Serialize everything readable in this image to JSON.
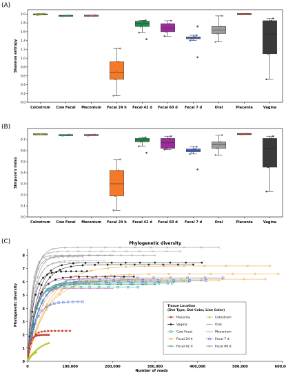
{
  "chart_data": [
    {
      "panel": "(A)",
      "type": "box",
      "title": "",
      "ylabel": "Shannon entropy",
      "xlabel": "",
      "ylim": [
        0,
        2.1
      ],
      "yticks": [
        "0.0",
        "0.2",
        "0.4",
        "0.6",
        "0.8",
        "1.0",
        "1.2",
        "1.4",
        "1.6",
        "1.8",
        "2.0"
      ],
      "grid": false,
      "categories": [
        "Colostrum",
        "Cow Fecal",
        "Meconium",
        "Fecal 24 h",
        "Fecal 42 d",
        "Fecal 60 d",
        "Fecal 7 d",
        "Oral",
        "Placenta",
        "Vagina"
      ],
      "boxes": [
        {
          "color": "#b5c732",
          "min": 1.98,
          "q1": 1.985,
          "median": 1.99,
          "q3": 2.0,
          "max": 2.01,
          "outliers": []
        },
        {
          "color": "#2aa6a0",
          "min": 1.95,
          "q1": 1.955,
          "median": 1.96,
          "q3": 1.965,
          "max": 1.97,
          "outliers": []
        },
        {
          "color": "#d46fb0",
          "min": 1.95,
          "q1": 1.955,
          "median": 1.96,
          "q3": 1.97,
          "max": 1.975,
          "outliers": []
        },
        {
          "color": "#f47a2a",
          "min": 0.15,
          "q1": 0.52,
          "median": 0.68,
          "q3": 0.92,
          "max": 1.22,
          "outliers": []
        },
        {
          "color": "#1e8a47",
          "min": 1.58,
          "q1": 1.72,
          "median": 1.78,
          "q3": 1.84,
          "max": 1.86,
          "outliers": [
            1.43
          ]
        },
        {
          "color": "#9b2c99",
          "min": 1.5,
          "q1": 1.6,
          "median": 1.68,
          "q3": 1.78,
          "max": 1.85,
          "outliers": []
        },
        {
          "color": "#4a6ed4",
          "min": 1.4,
          "q1": 1.44,
          "median": 1.46,
          "q3": 1.48,
          "max": 1.52,
          "outliers": [
            1.72,
            1.02
          ]
        },
        {
          "color": "#9e9e9e",
          "min": 1.37,
          "q1": 1.56,
          "median": 1.64,
          "q3": 1.72,
          "max": 1.96,
          "outliers": []
        },
        {
          "color": "#c23a2a",
          "min": 1.995,
          "q1": 2.0,
          "median": 2.0,
          "q3": 2.0,
          "max": 2.005,
          "outliers": []
        },
        {
          "color": "#3a3a3a",
          "min": 0.52,
          "q1": 1.1,
          "median": 1.55,
          "q3": 1.85,
          "max": 1.9,
          "outliers": []
        }
      ]
    },
    {
      "panel": "(B)",
      "type": "box",
      "title": "",
      "ylabel": "Simpson's index",
      "xlabel": "",
      "ylim": [
        0,
        0.8
      ],
      "yticks": [
        "0.0",
        "0.1",
        "0.2",
        "0.3",
        "0.4",
        "0.5",
        "0.6",
        "0.7"
      ],
      "grid": false,
      "categories": [
        "Colostrum",
        "Cow Fecal",
        "Meconium",
        "Fecal 24 h",
        "Fecal 42 d",
        "Fecal 60 d",
        "Fecal 7 d",
        "Oral",
        "Placenta",
        "Vagina"
      ],
      "boxes": [
        {
          "color": "#b5c732",
          "min": 0.745,
          "q1": 0.746,
          "median": 0.748,
          "q3": 0.75,
          "max": 0.752,
          "outliers": []
        },
        {
          "color": "#2aa6a0",
          "min": 0.735,
          "q1": 0.738,
          "median": 0.74,
          "q3": 0.742,
          "max": 0.745,
          "outliers": []
        },
        {
          "color": "#d46fb0",
          "min": 0.735,
          "q1": 0.738,
          "median": 0.74,
          "q3": 0.743,
          "max": 0.746,
          "outliers": []
        },
        {
          "color": "#f47a2a",
          "min": 0.06,
          "q1": 0.19,
          "median": 0.3,
          "q3": 0.42,
          "max": 0.52,
          "outliers": []
        },
        {
          "color": "#1e8a47",
          "min": 0.64,
          "q1": 0.68,
          "median": 0.695,
          "q3": 0.71,
          "max": 0.72,
          "outliers": [
            0.58
          ]
        },
        {
          "color": "#9b2c99",
          "min": 0.61,
          "q1": 0.62,
          "median": 0.67,
          "q3": 0.71,
          "max": 0.73,
          "outliers": []
        },
        {
          "color": "#4a6ed4",
          "min": 0.57,
          "q1": 0.59,
          "median": 0.605,
          "q3": 0.615,
          "max": 0.635,
          "outliers": [
            0.43
          ]
        },
        {
          "color": "#9e9e9e",
          "min": 0.56,
          "q1": 0.62,
          "median": 0.655,
          "q3": 0.68,
          "max": 0.74,
          "outliers": []
        },
        {
          "color": "#c23a2a",
          "min": 0.748,
          "q1": 0.75,
          "median": 0.75,
          "q3": 0.75,
          "max": 0.752,
          "outliers": []
        },
        {
          "color": "#3a3a3a",
          "min": 0.23,
          "q1": 0.45,
          "median": 0.62,
          "q3": 0.71,
          "max": 0.73,
          "outliers": []
        }
      ]
    },
    {
      "panel": "(C)",
      "type": "line",
      "title": "Phylogenetic diversity",
      "xlabel": "Number of reads",
      "ylabel": "Phylogenetic diversity",
      "xlim": [
        0,
        600000
      ],
      "ylim": [
        0,
        8.5
      ],
      "xticks": [
        "0",
        "100,000",
        "200,000",
        "300,000",
        "400,000",
        "500,000",
        "600,000"
      ],
      "yticks": [
        "0",
        "1",
        "2",
        "3",
        "4",
        "5",
        "6",
        "7",
        "8"
      ],
      "grid": false,
      "legend": {
        "title": "Tissue Location",
        "subtitle": "(Dot Type, Dot Color, Line Color)",
        "placement": "bottom-right",
        "entries": [
          {
            "name": "Placenta",
            "color": "#c23a2a",
            "marker": "circle"
          },
          {
            "name": "Colostrum",
            "color": "#b5c732",
            "marker": "circle"
          },
          {
            "name": "Vagina",
            "color": "#222222",
            "marker": "circle"
          },
          {
            "name": "Oral",
            "color": "#9e9e9e",
            "marker": "plus"
          },
          {
            "name": "Cow Fecal",
            "color": "#2aa6a0",
            "marker": "square"
          },
          {
            "name": "Meconium",
            "color": "#d46fb0",
            "marker": "minus"
          },
          {
            "name": "Fecal 24 h",
            "color": "#f0a02a",
            "marker": "star"
          },
          {
            "name": "Fecal 7 d",
            "color": "#4a6ed4",
            "marker": "square"
          },
          {
            "name": "Fecal 42 d",
            "color": "#1e8a47",
            "marker": "x"
          },
          {
            "name": "Fecal 60 d",
            "color": "#777777",
            "marker": "x"
          }
        ]
      },
      "series": [
        {
          "group": "Fecal 60 d",
          "color": "#8c8c8c",
          "marker": "x",
          "xmax": 450000,
          "asym": 8.6,
          "k": 14000
        },
        {
          "group": "Fecal 60 d",
          "color": "#8c8c8c",
          "marker": "x",
          "xmax": 360000,
          "asym": 8.3,
          "k": 12000
        },
        {
          "group": "Fecal 60 d",
          "color": "#8c8c8c",
          "marker": "x",
          "xmax": 300000,
          "asym": 8.0,
          "k": 15000
        },
        {
          "group": "Fecal 60 d",
          "color": "#8c8c8c",
          "marker": "x",
          "xmax": 200000,
          "asym": 8.0,
          "k": 10000
        },
        {
          "group": "Fecal 60 d",
          "color": "#8c8c8c",
          "marker": "x",
          "xmax": 130000,
          "asym": 7.9,
          "k": 12000
        },
        {
          "group": "Oral",
          "color": "#a9a9a9",
          "marker": "plus",
          "xmax": 180000,
          "asym": 7.6,
          "k": 16000
        },
        {
          "group": "Oral",
          "color": "#a9a9a9",
          "marker": "plus",
          "xmax": 120000,
          "asym": 7.5,
          "k": 15000
        },
        {
          "group": "Vagina",
          "color": "#222222",
          "marker": "circle",
          "xmax": 410000,
          "asym": 7.45,
          "k": 22000
        },
        {
          "group": "Vagina",
          "color": "#222222",
          "marker": "circle",
          "xmax": 390000,
          "asym": 7.3,
          "k": 26000
        },
        {
          "group": "Vagina",
          "color": "#222222",
          "marker": "circle",
          "xmax": 250000,
          "asym": 6.4,
          "k": 20000
        },
        {
          "group": "Vagina",
          "color": "#222222",
          "marker": "circle",
          "xmax": 140000,
          "asym": 6.8,
          "k": 14000
        },
        {
          "group": "Fecal 24 h",
          "color": "#f0a02a",
          "marker": "star",
          "xmax": 570000,
          "asym": 7.2,
          "k": 50000
        },
        {
          "group": "Fecal 24 h",
          "color": "#f0a02a",
          "marker": "star",
          "xmax": 590000,
          "asym": 6.6,
          "k": 48000
        },
        {
          "group": "Fecal 24 h",
          "color": "#f0a02a",
          "marker": "star",
          "xmax": 560000,
          "asym": 6.2,
          "k": 45000
        },
        {
          "group": "Fecal 24 h",
          "color": "#f0a02a",
          "marker": "star",
          "xmax": 450000,
          "asym": 6.1,
          "k": 30000
        },
        {
          "group": "Fecal 7 d",
          "color": "#4a6ed4",
          "marker": "square",
          "xmax": 460000,
          "asym": 6.3,
          "k": 28000
        },
        {
          "group": "Fecal 7 d",
          "color": "#4a6ed4",
          "marker": "square",
          "xmax": 420000,
          "asym": 6.1,
          "k": 26000
        },
        {
          "group": "Fecal 7 d",
          "color": "#4a6ed4",
          "marker": "square",
          "xmax": 330000,
          "asym": 5.9,
          "k": 24000
        },
        {
          "group": "Fecal 7 d",
          "color": "#4a6ed4",
          "marker": "square",
          "xmax": 130000,
          "asym": 4.5,
          "k": 18000
        },
        {
          "group": "Fecal 42 d",
          "color": "#1e8a47",
          "marker": "x",
          "xmax": 380000,
          "asym": 6.0,
          "k": 20000
        },
        {
          "group": "Fecal 42 d",
          "color": "#1e8a47",
          "marker": "x",
          "xmax": 300000,
          "asym": 5.8,
          "k": 18000
        },
        {
          "group": "Cow Fecal",
          "color": "#2aa6a0",
          "marker": "square",
          "xmax": 340000,
          "asym": 5.9,
          "k": 18000
        },
        {
          "group": "Cow Fecal",
          "color": "#2aa6a0",
          "marker": "square",
          "xmax": 260000,
          "asym": 5.6,
          "k": 16000
        },
        {
          "group": "Meconium",
          "color": "#d46fb0",
          "marker": "minus",
          "xmax": 300000,
          "asym": 6.2,
          "k": 16000
        },
        {
          "group": "Meconium",
          "color": "#d46fb0",
          "marker": "minus",
          "xmax": 200000,
          "asym": 5.5,
          "k": 14000
        },
        {
          "group": "Placenta",
          "color": "#c23a2a",
          "marker": "circle",
          "xmax": 100000,
          "asym": 2.3,
          "k": 9000
        },
        {
          "group": "Placenta",
          "color": "#c23a2a",
          "marker": "circle",
          "xmax": 50000,
          "asym": 2.0,
          "k": 6000
        },
        {
          "group": "Colostrum",
          "color": "#b5c732",
          "marker": "circle",
          "xmax": 50000,
          "asym": 1.7,
          "k": 30000
        },
        {
          "group": "Colostrum",
          "color": "#b5c732",
          "marker": "circle",
          "xmax": 20000,
          "asym": 0.9,
          "k": 14000
        }
      ]
    }
  ]
}
